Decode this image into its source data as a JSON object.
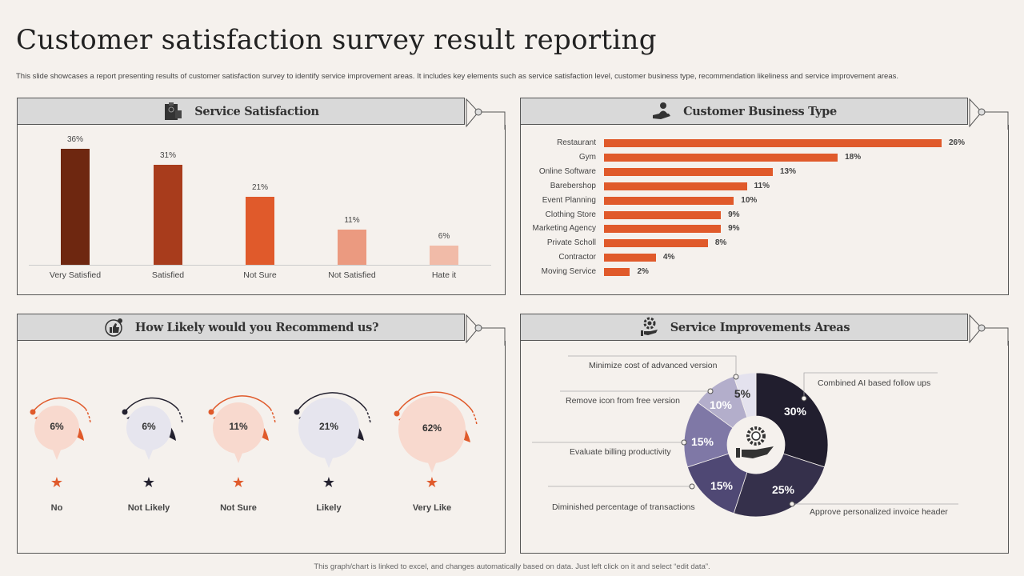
{
  "title": "Customer satisfaction survey result reporting",
  "description": "This slide showcases a report presenting results of customer satisfaction survey to identify service improvement areas. It includes key elements such as service satisfaction level, customer business type, recommendation likeliness and service improvement areas.",
  "footer": "This graph/chart is linked to excel, and changes automatically based on data. Just left click on it and select “edit data”.",
  "panels": {
    "service_satisfaction": {
      "title": "Service Satisfaction",
      "icon": "clipboard-icon"
    },
    "business_type": {
      "title": "Customer Business Type",
      "icon": "hand-user-icon"
    },
    "recommend": {
      "title": "How Likely would you Recommend us?",
      "icon": "thumbs-up-icon"
    },
    "improvements": {
      "title": "Service Improvements Areas",
      "icon": "gear-hand-icon"
    }
  },
  "chart_data": [
    {
      "type": "bar",
      "title": "Service Satisfaction",
      "categories": [
        "Very Satisfied",
        "Satisfied",
        "Not Sure",
        "Not Satisfied",
        "Hate it"
      ],
      "values": [
        36,
        31,
        21,
        11,
        6
      ],
      "labels": [
        "36%",
        "31%",
        "21%",
        "11%",
        "6%"
      ],
      "colors": [
        "#6e2710",
        "#a83c1c",
        "#e05a2b",
        "#eb9a80",
        "#f1bba8"
      ],
      "unit": "%"
    },
    {
      "type": "bar",
      "orientation": "horizontal",
      "title": "Customer Business Type",
      "categories": [
        "Restaurant",
        "Gym",
        "Online Software",
        "Barebershop",
        "Event Planning",
        "Clothing Store",
        "Marketing Agency",
        "Private Scholl",
        "Contractor",
        "Moving Service"
      ],
      "values": [
        26,
        18,
        13,
        11,
        10,
        9,
        9,
        8,
        4,
        2
      ],
      "labels": [
        "26%",
        "18%",
        "13%",
        "11%",
        "10%",
        "9%",
        "9%",
        "8%",
        "4%",
        "2%"
      ],
      "color": "#e05a2b",
      "unit": "%"
    },
    {
      "type": "bubble",
      "title": "How Likely would you Recommend us?",
      "categories": [
        "No",
        "Not Likely",
        "Not Sure",
        "Likely",
        "Very Like"
      ],
      "values": [
        6,
        6,
        11,
        21,
        62
      ],
      "labels": [
        "6%",
        "6%",
        "11%",
        "21%",
        "62%"
      ],
      "colors": [
        "#e05a2b",
        "#23212f",
        "#e05a2b",
        "#23212f",
        "#e05a2b"
      ]
    },
    {
      "type": "pie",
      "donut": true,
      "title": "Service Improvements Areas",
      "categories": [
        "Combined  AI based follow ups",
        "Approve personalized invoice header",
        "Diminished  percentage of transactions",
        "Evaluate  billing  productivity",
        "Remove  icon from free version",
        "Minimize  cost of advanced version"
      ],
      "values": [
        30,
        25,
        15,
        15,
        10,
        5
      ],
      "labels": [
        "30%",
        "25%",
        "15%",
        "15%",
        "10%",
        "5%"
      ],
      "colors": [
        "#211e2e",
        "#35304b",
        "#4f4874",
        "#7f78a6",
        "#b3aecb",
        "#e4e2ee"
      ]
    }
  ]
}
